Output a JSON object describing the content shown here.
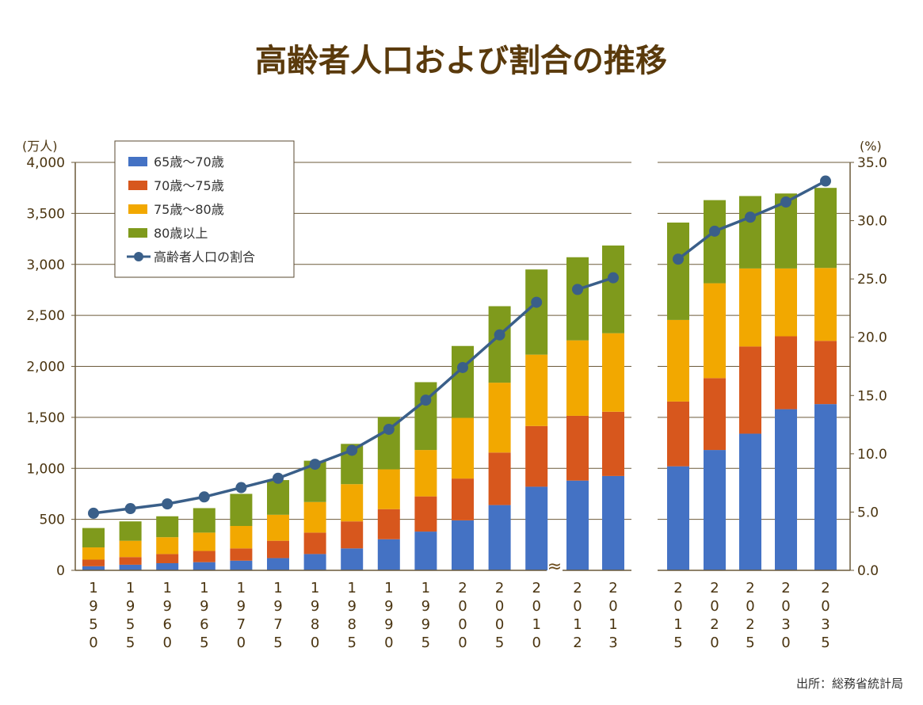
{
  "chart_data": {
    "type": "bar+line",
    "title": "高齢者人口および割合の推移",
    "y_left_unit": "(万人)",
    "y_right_unit": "(%)",
    "y_left_ticks": [
      "0",
      "500",
      "1,000",
      "1,500",
      "2,000",
      "2,500",
      "3,000",
      "3,500",
      "4,000"
    ],
    "y_right_ticks": [
      "0.0",
      "5.0",
      "10.0",
      "15.0",
      "20.0",
      "25.0",
      "30.0",
      "35.0"
    ],
    "ylim_left": [
      0,
      4000
    ],
    "ylim_right": [
      0,
      35
    ],
    "categories": [
      "1950",
      "1955",
      "1960",
      "1965",
      "1970",
      "1975",
      "1980",
      "1985",
      "1990",
      "1995",
      "2000",
      "2005",
      "2010",
      "2012",
      "2013",
      "2015",
      "2020",
      "2025",
      "2030",
      "2035"
    ],
    "series": [
      {
        "name": "65歳〜70歳",
        "color": "#4472c4",
        "values": [
          40,
          55,
          70,
          80,
          95,
          120,
          160,
          215,
          305,
          380,
          490,
          640,
          820,
          880,
          925,
          1020,
          1180,
          1340,
          1580,
          1630
        ]
      },
      {
        "name": "70歳〜75歳",
        "color": "#d7571d",
        "values": [
          65,
          75,
          90,
          110,
          120,
          170,
          210,
          265,
          295,
          345,
          410,
          515,
          595,
          635,
          630,
          635,
          705,
          855,
          715,
          620
        ]
      },
      {
        "name": "75歳〜80歳",
        "color": "#f2a800",
        "values": [
          120,
          160,
          165,
          180,
          220,
          255,
          300,
          365,
          390,
          455,
          595,
          685,
          700,
          740,
          770,
          800,
          930,
          765,
          665,
          715
        ]
      },
      {
        "name": "80歳以上",
        "color": "#7f9a1c",
        "values": [
          190,
          190,
          205,
          240,
          315,
          340,
          405,
          395,
          515,
          665,
          705,
          750,
          835,
          815,
          860,
          955,
          815,
          710,
          735,
          785
        ]
      }
    ],
    "line": {
      "name": "高齢者人口の割合",
      "color": "#3a5f89",
      "values": [
        4.9,
        5.3,
        5.7,
        6.3,
        7.1,
        7.9,
        9.1,
        10.3,
        12.1,
        14.6,
        17.4,
        20.2,
        23.0,
        24.1,
        25.1,
        26.7,
        29.1,
        30.3,
        31.6,
        33.4
      ]
    },
    "legend_position": "top-left",
    "break_marker": "≈"
  },
  "source": "出所：総務省統計局"
}
